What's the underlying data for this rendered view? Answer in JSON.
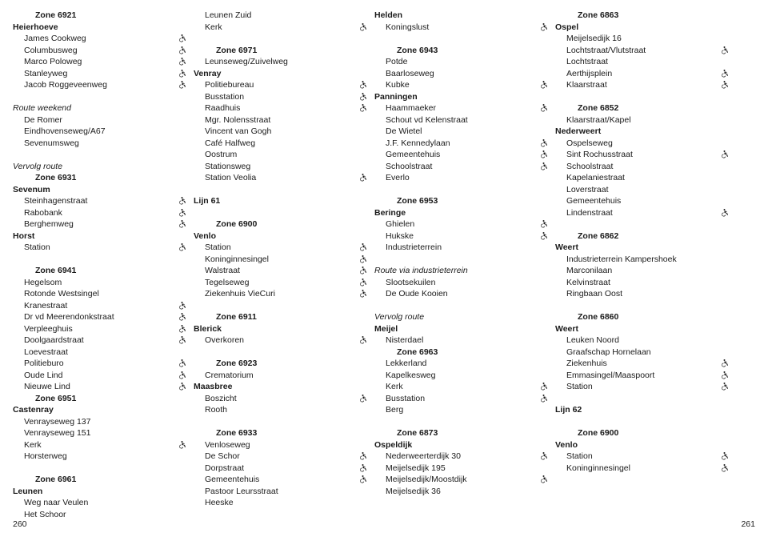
{
  "page_left": "260",
  "page_right": "261",
  "columns": [
    [
      {
        "t": "zone",
        "v": "Zone 6921"
      },
      {
        "t": "place",
        "v": "Heierhoeve"
      },
      {
        "t": "stop",
        "v": "James Cookweg",
        "i": true
      },
      {
        "t": "stop",
        "v": "Columbusweg",
        "i": true
      },
      {
        "t": "stop",
        "v": "Marco Poloweg",
        "i": true
      },
      {
        "t": "stop",
        "v": "Stanleyweg",
        "i": true
      },
      {
        "t": "stop",
        "v": "Jacob Roggeveenweg",
        "i": true
      },
      {
        "t": "blank"
      },
      {
        "t": "italic",
        "v": "Route weekend"
      },
      {
        "t": "stop",
        "v": "De Romer"
      },
      {
        "t": "stop",
        "v": "Eindhovenseweg/A67"
      },
      {
        "t": "stop",
        "v": "Sevenumsweg"
      },
      {
        "t": "blank"
      },
      {
        "t": "italic",
        "v": "Vervolg route"
      },
      {
        "t": "zone",
        "v": "Zone 6931"
      },
      {
        "t": "place",
        "v": "Sevenum"
      },
      {
        "t": "stop",
        "v": "Steinhagenstraat",
        "i": true
      },
      {
        "t": "stop",
        "v": "Rabobank",
        "i": true
      },
      {
        "t": "stop",
        "v": "Berghemweg",
        "i": true
      },
      {
        "t": "place",
        "v": "Horst"
      },
      {
        "t": "stop",
        "v": "Station",
        "i": true
      },
      {
        "t": "blank"
      },
      {
        "t": "zone",
        "v": "Zone 6941"
      },
      {
        "t": "stop",
        "v": "Hegelsom"
      },
      {
        "t": "stop",
        "v": "Rotonde Westsingel"
      },
      {
        "t": "stop",
        "v": "Kranestraat",
        "i": true
      },
      {
        "t": "stop",
        "v": "Dr vd Meerendonkstraat",
        "i": true
      },
      {
        "t": "stop",
        "v": "Verpleeghuis",
        "i": true
      },
      {
        "t": "stop",
        "v": "Doolgaardstraat",
        "i": true
      },
      {
        "t": "stop",
        "v": "Loevestraat"
      },
      {
        "t": "stop",
        "v": "Politieburo",
        "i": true
      },
      {
        "t": "stop",
        "v": "Oude Lind",
        "i": true
      },
      {
        "t": "stop",
        "v": "Nieuwe Lind",
        "i": true
      },
      {
        "t": "zone",
        "v": "Zone 6951"
      },
      {
        "t": "place",
        "v": "Castenray"
      },
      {
        "t": "stop",
        "v": "Venrayseweg 137"
      },
      {
        "t": "stop",
        "v": "Venrayseweg 151"
      },
      {
        "t": "stop",
        "v": "Kerk",
        "i": true
      },
      {
        "t": "stop",
        "v": "Horsterweg"
      },
      {
        "t": "blank"
      },
      {
        "t": "zone",
        "v": "Zone 6961"
      },
      {
        "t": "place",
        "v": "Leunen"
      },
      {
        "t": "stop",
        "v": "Weg naar Veulen"
      },
      {
        "t": "stop",
        "v": "Het Schoor"
      }
    ],
    [
      {
        "t": "stop",
        "v": "Leunen Zuid"
      },
      {
        "t": "stop",
        "v": "Kerk",
        "i": true
      },
      {
        "t": "blank"
      },
      {
        "t": "zone",
        "v": "Zone 6971"
      },
      {
        "t": "stop",
        "v": "Leunseweg/Zuivelweg"
      },
      {
        "t": "place",
        "v": "Venray"
      },
      {
        "t": "stop",
        "v": "Politiebureau",
        "i": true
      },
      {
        "t": "stop",
        "v": "Busstation",
        "i": true
      },
      {
        "t": "stop",
        "v": "Raadhuis",
        "i": true
      },
      {
        "t": "stop",
        "v": "Mgr. Nolensstraat"
      },
      {
        "t": "stop",
        "v": "Vincent van Gogh"
      },
      {
        "t": "stop",
        "v": "Café Halfweg"
      },
      {
        "t": "stop",
        "v": "Oostrum"
      },
      {
        "t": "stop",
        "v": "Stationsweg"
      },
      {
        "t": "stop",
        "v": "Station Veolia",
        "i": true
      },
      {
        "t": "blank"
      },
      {
        "t": "place",
        "v": "Lijn 61"
      },
      {
        "t": "blank"
      },
      {
        "t": "zone",
        "v": "Zone 6900"
      },
      {
        "t": "place",
        "v": "Venlo"
      },
      {
        "t": "stop",
        "v": "Station",
        "i": true
      },
      {
        "t": "stop",
        "v": "Koninginnesingel",
        "i": true
      },
      {
        "t": "stop",
        "v": "Walstraat",
        "i": true
      },
      {
        "t": "stop",
        "v": "Tegelseweg",
        "i": true
      },
      {
        "t": "stop",
        "v": "Ziekenhuis VieCuri",
        "i": true
      },
      {
        "t": "blank"
      },
      {
        "t": "zone",
        "v": "Zone 6911"
      },
      {
        "t": "place",
        "v": "Blerick"
      },
      {
        "t": "stop",
        "v": "Overkoren",
        "i": true
      },
      {
        "t": "blank"
      },
      {
        "t": "zone",
        "v": "Zone 6923"
      },
      {
        "t": "stop",
        "v": "Crematorium"
      },
      {
        "t": "place",
        "v": "Maasbree"
      },
      {
        "t": "stop",
        "v": "Boszicht",
        "i": true
      },
      {
        "t": "stop",
        "v": "Rooth"
      },
      {
        "t": "blank"
      },
      {
        "t": "zone",
        "v": "Zone 6933"
      },
      {
        "t": "stop",
        "v": "Venloseweg"
      },
      {
        "t": "stop",
        "v": "De Schor",
        "i": true
      },
      {
        "t": "stop",
        "v": "Dorpstraat",
        "i": true
      },
      {
        "t": "stop",
        "v": "Gemeentehuis",
        "i": true
      },
      {
        "t": "stop",
        "v": "Pastoor Leursstraat"
      },
      {
        "t": "stop",
        "v": "Heeske"
      }
    ],
    [
      {
        "t": "place",
        "v": "Helden"
      },
      {
        "t": "stop",
        "v": "Koningslust",
        "i": true
      },
      {
        "t": "blank"
      },
      {
        "t": "zone",
        "v": "Zone 6943"
      },
      {
        "t": "stop",
        "v": "Potde"
      },
      {
        "t": "stop",
        "v": "Baarloseweg"
      },
      {
        "t": "stop",
        "v": "Kubke",
        "i": true
      },
      {
        "t": "place",
        "v": "Panningen"
      },
      {
        "t": "stop",
        "v": "Haammaeker",
        "i": true
      },
      {
        "t": "stop",
        "v": "Schout vd Kelenstraat"
      },
      {
        "t": "stop",
        "v": "De Wietel"
      },
      {
        "t": "stop",
        "v": "J.F. Kennedylaan",
        "i": true
      },
      {
        "t": "stop",
        "v": "Gemeentehuis",
        "i": true
      },
      {
        "t": "stop",
        "v": "Schoolstraat",
        "i": true
      },
      {
        "t": "stop",
        "v": "Everlo"
      },
      {
        "t": "blank"
      },
      {
        "t": "zone",
        "v": "Zone 6953"
      },
      {
        "t": "place",
        "v": "Beringe"
      },
      {
        "t": "stop",
        "v": "Ghielen",
        "i": true
      },
      {
        "t": "stop",
        "v": "Hukske",
        "i": true
      },
      {
        "t": "stop",
        "v": "Industrieterrein"
      },
      {
        "t": "blank"
      },
      {
        "t": "italic",
        "v": "Route via industrieterrein"
      },
      {
        "t": "stop",
        "v": "Slootsekuilen"
      },
      {
        "t": "stop",
        "v": "De Oude Kooien"
      },
      {
        "t": "blank"
      },
      {
        "t": "italic",
        "v": "Vervolg route"
      },
      {
        "t": "place",
        "v": "Meijel"
      },
      {
        "t": "stop",
        "v": "Nisterdael"
      },
      {
        "t": "zone",
        "v": "Zone 6963"
      },
      {
        "t": "stop",
        "v": "Lekkerland"
      },
      {
        "t": "stop",
        "v": "Kapelkesweg"
      },
      {
        "t": "stop",
        "v": "Kerk",
        "i": true
      },
      {
        "t": "stop",
        "v": "Busstation",
        "i": true
      },
      {
        "t": "stop",
        "v": "Berg"
      },
      {
        "t": "blank"
      },
      {
        "t": "zone",
        "v": "Zone 6873"
      },
      {
        "t": "place",
        "v": "Ospeldijk"
      },
      {
        "t": "stop",
        "v": "Nederweerterdijk 30",
        "i": true
      },
      {
        "t": "stop",
        "v": "Meijelsedijk 195"
      },
      {
        "t": "stop",
        "v": "Meijelsedijk/Moostdijk",
        "i": true
      },
      {
        "t": "stop",
        "v": "Meijelsedijk 36"
      }
    ],
    [
      {
        "t": "zone",
        "v": "Zone 6863"
      },
      {
        "t": "place",
        "v": "Ospel"
      },
      {
        "t": "stop",
        "v": "Meijelsedijk 16"
      },
      {
        "t": "stop",
        "v": "Lochtstraat/Vlutstraat",
        "i": true
      },
      {
        "t": "stop",
        "v": "Lochtstraat"
      },
      {
        "t": "stop",
        "v": "Aerthijsplein",
        "i": true
      },
      {
        "t": "stop",
        "v": "Klaarstraat",
        "i": true
      },
      {
        "t": "blank"
      },
      {
        "t": "zone",
        "v": "Zone 6852"
      },
      {
        "t": "stop",
        "v": "Klaarstraat/Kapel"
      },
      {
        "t": "place",
        "v": "Nederweert"
      },
      {
        "t": "stop",
        "v": "Ospelseweg"
      },
      {
        "t": "stop",
        "v": "Sint Rochusstraat",
        "i": true
      },
      {
        "t": "stop",
        "v": "Schoolstraat"
      },
      {
        "t": "stop",
        "v": "Kapelaniestraat"
      },
      {
        "t": "stop",
        "v": "Loverstraat"
      },
      {
        "t": "stop",
        "v": "Gemeentehuis"
      },
      {
        "t": "stop",
        "v": "Lindenstraat",
        "i": true
      },
      {
        "t": "blank"
      },
      {
        "t": "zone",
        "v": "Zone 6862"
      },
      {
        "t": "place",
        "v": "Weert"
      },
      {
        "t": "stop",
        "v": "Industrieterrein Kampershoek"
      },
      {
        "t": "stop",
        "v": "Marconilaan"
      },
      {
        "t": "stop",
        "v": "Kelvinstraat"
      },
      {
        "t": "stop",
        "v": "Ringbaan Oost"
      },
      {
        "t": "blank"
      },
      {
        "t": "zone",
        "v": "Zone 6860"
      },
      {
        "t": "place",
        "v": "Weert"
      },
      {
        "t": "stop",
        "v": "Leuken Noord"
      },
      {
        "t": "stop",
        "v": "Graafschap Hornelaan"
      },
      {
        "t": "stop",
        "v": "Ziekenhuis",
        "i": true
      },
      {
        "t": "stop",
        "v": "Emmasingel/Maaspoort",
        "i": true
      },
      {
        "t": "stop",
        "v": "Station",
        "i": true
      },
      {
        "t": "blank"
      },
      {
        "t": "place",
        "v": "Lijn 62"
      },
      {
        "t": "blank"
      },
      {
        "t": "zone",
        "v": "Zone 6900"
      },
      {
        "t": "place",
        "v": "Venlo"
      },
      {
        "t": "stop",
        "v": "Station",
        "i": true
      },
      {
        "t": "stop",
        "v": "Koninginnesingel",
        "i": true
      }
    ]
  ]
}
